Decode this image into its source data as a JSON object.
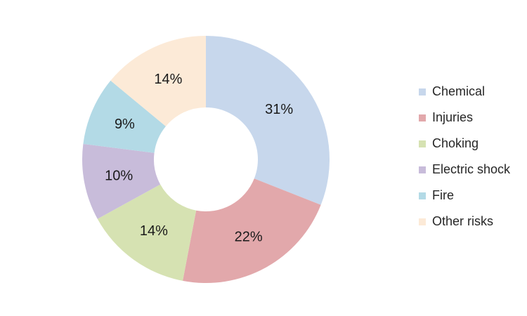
{
  "page": {
    "background": "#ffffff"
  },
  "chart_data": {
    "type": "pie",
    "subtype": "donut",
    "title": "",
    "categories": [
      "Chemical",
      "Injuries",
      "Choking",
      "Electric shock",
      "Fire",
      "Other risks"
    ],
    "values": [
      31,
      22,
      14,
      10,
      9,
      14
    ],
    "unit": "%",
    "data_labels": [
      "31%",
      "22%",
      "14%",
      "10%",
      "9%",
      "14%"
    ],
    "colors": [
      "#c7d7ec",
      "#e2a8ab",
      "#d6e2b2",
      "#c8bcda",
      "#b3dae6",
      "#fcead7"
    ],
    "start_angle_deg": 0,
    "direction": "clockwise",
    "legend_position": "right",
    "label_color": "#1a1a1a",
    "legend_text_color": "#262626"
  }
}
